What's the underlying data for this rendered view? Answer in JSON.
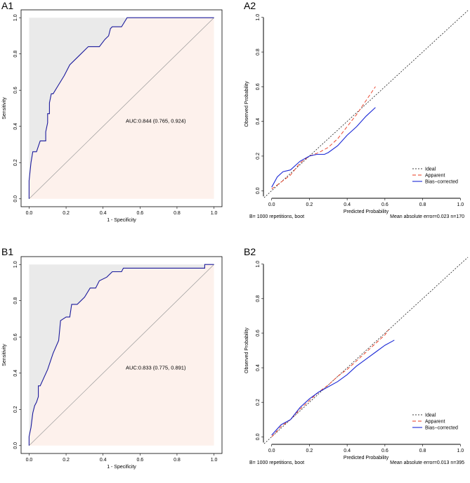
{
  "chart_data": [
    {
      "id": "A1",
      "type": "roc",
      "panel_label": "A1",
      "xlabel": "1 - Specificity",
      "ylabel": "Sensitivity",
      "xlim": [
        0,
        1
      ],
      "ylim": [
        0,
        1
      ],
      "ticks": [
        "0.0",
        "0.2",
        "0.4",
        "0.6",
        "0.8",
        "1.0"
      ],
      "auc_text": "AUC:0.844 (0.765, 0.924)",
      "auc_pos": [
        0.5,
        0.42
      ],
      "colors": {
        "curve": "#1a1a9c",
        "upper_fill": "#eaeaea",
        "lower_fill": "#fdf1ec",
        "diagonal": "#9a9a9a"
      },
      "roc": [
        [
          0,
          0
        ],
        [
          0,
          0.1
        ],
        [
          0.01,
          0.2
        ],
        [
          0.02,
          0.26
        ],
        [
          0.04,
          0.26
        ],
        [
          0.05,
          0.29
        ],
        [
          0.06,
          0.32
        ],
        [
          0.09,
          0.32
        ],
        [
          0.09,
          0.37
        ],
        [
          0.1,
          0.42
        ],
        [
          0.1,
          0.47
        ],
        [
          0.11,
          0.47
        ],
        [
          0.11,
          0.53
        ],
        [
          0.12,
          0.58
        ],
        [
          0.13,
          0.58
        ],
        [
          0.16,
          0.63
        ],
        [
          0.19,
          0.68
        ],
        [
          0.22,
          0.74
        ],
        [
          0.27,
          0.79
        ],
        [
          0.32,
          0.84
        ],
        [
          0.38,
          0.84
        ],
        [
          0.41,
          0.88
        ],
        [
          0.43,
          0.9
        ],
        [
          0.44,
          0.94
        ],
        [
          0.45,
          0.95
        ],
        [
          0.5,
          0.95
        ],
        [
          0.53,
          1.0
        ],
        [
          1,
          1
        ]
      ]
    },
    {
      "id": "A2",
      "type": "calibration",
      "panel_label": "A2",
      "xlabel": "Predicted Probability",
      "ylabel": "Observed Probability",
      "xlim": [
        0,
        1
      ],
      "ylim": [
        0,
        1
      ],
      "ticks": [
        "0.0",
        "0.2",
        "0.4",
        "0.6",
        "0.8",
        "1.0"
      ],
      "footer_left": "B= 1000 repetitions, boot",
      "footer_right": "Mean absolute error=0.023 n=170",
      "legend": {
        "position": "bottom-right",
        "items": [
          "Ideal",
          "Apparent",
          "Bias−corrected"
        ]
      },
      "colors": {
        "ideal": "#000000",
        "apparent": "#e8381e",
        "bias": "#1a28d6"
      },
      "series": [
        {
          "name": "Apparent",
          "points": [
            [
              0.0,
              0.01
            ],
            [
              0.05,
              0.05
            ],
            [
              0.1,
              0.09
            ],
            [
              0.15,
              0.16
            ],
            [
              0.2,
              0.2
            ],
            [
              0.25,
              0.22
            ],
            [
              0.3,
              0.25
            ],
            [
              0.35,
              0.3
            ],
            [
              0.4,
              0.37
            ],
            [
              0.45,
              0.44
            ],
            [
              0.5,
              0.52
            ],
            [
              0.55,
              0.6
            ]
          ]
        },
        {
          "name": "Bias−corrected",
          "points": [
            [
              0.0,
              0.02
            ],
            [
              0.03,
              0.08
            ],
            [
              0.06,
              0.11
            ],
            [
              0.1,
              0.12
            ],
            [
              0.15,
              0.17
            ],
            [
              0.2,
              0.2
            ],
            [
              0.24,
              0.21
            ],
            [
              0.28,
              0.21
            ],
            [
              0.3,
              0.22
            ],
            [
              0.35,
              0.26
            ],
            [
              0.4,
              0.32
            ],
            [
              0.45,
              0.37
            ],
            [
              0.5,
              0.43
            ],
            [
              0.55,
              0.48
            ]
          ]
        }
      ]
    },
    {
      "id": "B1",
      "type": "roc",
      "panel_label": "B1",
      "xlabel": "1 - Specificity",
      "ylabel": "Sensitivity",
      "xlim": [
        0,
        1
      ],
      "ylim": [
        0,
        1
      ],
      "ticks": [
        "0.0",
        "0.2",
        "0.4",
        "0.6",
        "0.8",
        "1.0"
      ],
      "auc_text": "AUC:0.833 (0.775, 0.891)",
      "auc_pos": [
        0.5,
        0.42
      ],
      "colors": {
        "curve": "#1a1a9c",
        "upper_fill": "#eaeaea",
        "lower_fill": "#fdf1ec",
        "diagonal": "#9a9a9a"
      },
      "roc": [
        [
          0,
          0
        ],
        [
          0,
          0.05
        ],
        [
          0.01,
          0.1
        ],
        [
          0.02,
          0.18
        ],
        [
          0.03,
          0.22
        ],
        [
          0.04,
          0.24
        ],
        [
          0.05,
          0.27
        ],
        [
          0.05,
          0.33
        ],
        [
          0.06,
          0.33
        ],
        [
          0.1,
          0.42
        ],
        [
          0.13,
          0.51
        ],
        [
          0.16,
          0.58
        ],
        [
          0.17,
          0.69
        ],
        [
          0.2,
          0.71
        ],
        [
          0.22,
          0.71
        ],
        [
          0.23,
          0.78
        ],
        [
          0.26,
          0.78
        ],
        [
          0.3,
          0.82
        ],
        [
          0.33,
          0.87
        ],
        [
          0.36,
          0.87
        ],
        [
          0.38,
          0.91
        ],
        [
          0.42,
          0.93
        ],
        [
          0.45,
          0.96
        ],
        [
          0.5,
          0.96
        ],
        [
          0.51,
          0.98
        ],
        [
          0.95,
          0.98
        ],
        [
          0.95,
          1.0
        ],
        [
          1,
          1
        ]
      ]
    },
    {
      "id": "B2",
      "type": "calibration",
      "panel_label": "B2",
      "xlabel": "Predicted Probability",
      "ylabel": "Observed Probability",
      "xlim": [
        0,
        1
      ],
      "ylim": [
        0,
        1
      ],
      "ticks": [
        "0.0",
        "0.2",
        "0.4",
        "0.6",
        "0.8",
        "1.0"
      ],
      "footer_left": "B= 1000 repetitions, boot",
      "footer_right": "Mean absolute error=0.013 n=395",
      "legend": {
        "position": "bottom-right",
        "items": [
          "Ideal",
          "Apparent",
          "Bias−corrected"
        ]
      },
      "colors": {
        "ideal": "#000000",
        "apparent": "#e8381e",
        "bias": "#1a28d6"
      },
      "series": [
        {
          "name": "Apparent",
          "points": [
            [
              0.0,
              0.0
            ],
            [
              0.05,
              0.06
            ],
            [
              0.1,
              0.1
            ],
            [
              0.15,
              0.16
            ],
            [
              0.2,
              0.21
            ],
            [
              0.25,
              0.26
            ],
            [
              0.3,
              0.3
            ],
            [
              0.35,
              0.35
            ],
            [
              0.4,
              0.39
            ],
            [
              0.45,
              0.44
            ],
            [
              0.5,
              0.49
            ],
            [
              0.55,
              0.54
            ],
            [
              0.6,
              0.59
            ],
            [
              0.62,
              0.62
            ]
          ]
        },
        {
          "name": "Bias−corrected",
          "points": [
            [
              0.0,
              0.01
            ],
            [
              0.05,
              0.07
            ],
            [
              0.1,
              0.1
            ],
            [
              0.15,
              0.17
            ],
            [
              0.2,
              0.22
            ],
            [
              0.25,
              0.26
            ],
            [
              0.3,
              0.29
            ],
            [
              0.35,
              0.32
            ],
            [
              0.4,
              0.36
            ],
            [
              0.45,
              0.41
            ],
            [
              0.5,
              0.45
            ],
            [
              0.55,
              0.49
            ],
            [
              0.6,
              0.53
            ],
            [
              0.65,
              0.56
            ]
          ]
        }
      ]
    }
  ]
}
